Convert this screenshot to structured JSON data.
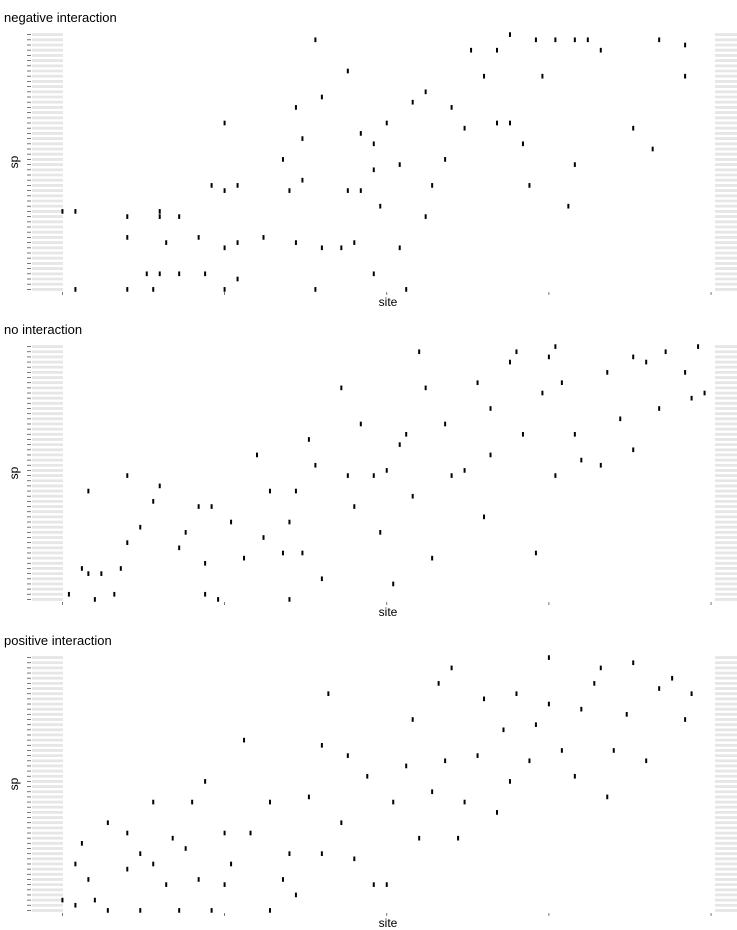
{
  "chart_data": [
    {
      "type": "scatter",
      "title": "negative interaction",
      "x_label": "site",
      "y_label": "sp",
      "color": "#000000",
      "xlim": [
        -5,
        104
      ],
      "ylim": [
        0.5,
        50.5
      ],
      "xticks": [
        0,
        25,
        50,
        75,
        100
      ],
      "yticks": [
        1,
        2,
        3,
        4,
        5,
        6,
        7,
        8,
        9,
        10,
        11,
        12,
        13,
        14,
        15,
        16,
        17,
        18,
        19,
        20,
        21,
        22,
        23,
        24,
        25,
        26,
        27,
        28,
        29,
        30,
        31,
        32,
        33,
        34,
        35,
        36,
        37,
        38,
        39,
        40,
        41,
        42,
        43,
        44,
        45,
        46,
        47,
        48,
        49,
        50
      ],
      "x": [
        0,
        2,
        10,
        15,
        15,
        18,
        10,
        16,
        21,
        25,
        27,
        31,
        36,
        40,
        43,
        45,
        52,
        13,
        15,
        18,
        22,
        27,
        48,
        2,
        10,
        14,
        25,
        39,
        53,
        23,
        25,
        27,
        37,
        44,
        46,
        49,
        56,
        34,
        35,
        37,
        36,
        40,
        44,
        46,
        48,
        52,
        57,
        59,
        62,
        63,
        67,
        65,
        67,
        69,
        72,
        78,
        73,
        76,
        79,
        81,
        83,
        92,
        96,
        96,
        88,
        91,
        79,
        71,
        39,
        25,
        54,
        56,
        60,
        74,
        69,
        50,
        48
      ],
      "values": [
        16,
        16,
        15,
        15,
        16,
        15,
        11,
        10,
        11,
        9,
        10,
        11,
        10,
        9,
        9,
        10,
        9,
        4,
        4,
        4,
        4,
        3,
        4,
        1,
        1,
        1,
        1,
        1,
        1,
        21,
        20,
        21,
        22,
        20,
        20,
        17,
        15,
        26,
        20,
        30,
        36,
        38,
        43,
        31,
        24,
        25,
        21,
        26,
        32,
        47,
        47,
        42,
        33,
        33,
        21,
        17,
        49,
        49,
        49,
        49,
        47,
        49,
        48,
        42,
        32,
        28,
        25,
        29,
        49,
        33,
        37,
        39,
        36,
        42,
        50,
        33,
        29
      ]
    },
    {
      "type": "scatter",
      "title": "no interaction",
      "x_label": "site",
      "y_label": "sp",
      "color": "#000000",
      "xlim": [
        -5,
        104
      ],
      "ylim": [
        0.5,
        50.5
      ],
      "xticks": [
        0,
        25,
        50,
        75,
        100
      ],
      "yticks": [
        1,
        2,
        3,
        4,
        5,
        6,
        7,
        8,
        9,
        10,
        11,
        12,
        13,
        14,
        15,
        16,
        17,
        18,
        19,
        20,
        21,
        22,
        23,
        24,
        25,
        26,
        27,
        28,
        29,
        30,
        31,
        32,
        33,
        34,
        35,
        36,
        37,
        38,
        39,
        40,
        41,
        42,
        43,
        44,
        45,
        46,
        47,
        48,
        49,
        50
      ],
      "x": [
        1,
        3,
        4,
        5,
        6,
        8,
        9,
        10,
        12,
        14,
        4,
        10,
        15,
        18,
        19,
        21,
        22,
        23,
        22,
        24,
        26,
        28,
        30,
        31,
        32,
        34,
        35,
        36,
        37,
        35,
        38,
        39,
        40,
        43,
        44,
        45,
        46,
        48,
        49,
        50,
        51,
        52,
        53,
        54,
        55,
        56,
        57,
        59,
        60,
        62,
        64,
        66,
        65,
        66,
        69,
        70,
        71,
        73,
        74,
        75,
        76,
        77,
        79,
        76,
        80,
        83,
        84,
        86,
        88,
        88,
        90,
        92,
        93,
        96,
        97,
        98,
        99
      ],
      "values": [
        2,
        7,
        6,
        1,
        6,
        2,
        7,
        12,
        15,
        20,
        22,
        25,
        23,
        11,
        14,
        19,
        8,
        19,
        2,
        1,
        16,
        9,
        29,
        13,
        22,
        10,
        16,
        22,
        10,
        1,
        32,
        27,
        5,
        42,
        25,
        19,
        35,
        25,
        14,
        26,
        4,
        31,
        33,
        21,
        49,
        42,
        9,
        35,
        25,
        26,
        43,
        29,
        17,
        38,
        47,
        49,
        33,
        10,
        41,
        48,
        50,
        43,
        33,
        25,
        28,
        27,
        45,
        36,
        48,
        30,
        47,
        38,
        49,
        45,
        40,
        50,
        41
      ]
    },
    {
      "type": "scatter",
      "title": "positive interaction",
      "x_label": "site",
      "y_label": "sp",
      "color": "#000000",
      "xlim": [
        -5,
        104
      ],
      "ylim": [
        0.5,
        50.5
      ],
      "xticks": [
        0,
        25,
        50,
        75,
        100
      ],
      "yticks": [
        1,
        2,
        3,
        4,
        5,
        6,
        7,
        8,
        9,
        10,
        11,
        12,
        13,
        14,
        15,
        16,
        17,
        18,
        19,
        20,
        21,
        22,
        23,
        24,
        25,
        26,
        27,
        28,
        29,
        30,
        31,
        32,
        33,
        34,
        35,
        36,
        37,
        38,
        39,
        40,
        41,
        42,
        43,
        44,
        45,
        46,
        47,
        48,
        49,
        50
      ],
      "x": [
        0,
        2,
        2,
        3,
        4,
        5,
        7,
        7,
        10,
        10,
        12,
        12,
        14,
        14,
        16,
        17,
        18,
        19,
        20,
        21,
        22,
        23,
        25,
        25,
        26,
        28,
        29,
        32,
        32,
        34,
        35,
        36,
        38,
        40,
        40,
        41,
        43,
        44,
        45,
        47,
        48,
        50,
        51,
        53,
        54,
        55,
        57,
        58,
        59,
        60,
        61,
        62,
        64,
        65,
        67,
        68,
        69,
        70,
        72,
        73,
        75,
        75,
        77,
        79,
        80,
        82,
        83,
        84,
        85,
        87,
        88,
        90,
        92,
        94,
        96,
        97
      ],
      "values": [
        3,
        2,
        10,
        14,
        7,
        3,
        18,
        1,
        16,
        9,
        1,
        12,
        10,
        22,
        6,
        15,
        1,
        13,
        22,
        7,
        26,
        1,
        6,
        16,
        10,
        34,
        16,
        1,
        22,
        7,
        12,
        4,
        23,
        33,
        12,
        43,
        18,
        31,
        11,
        27,
        6,
        6,
        22,
        29,
        38,
        15,
        24,
        45,
        30,
        48,
        15,
        22,
        31,
        42,
        20,
        36,
        26,
        43,
        30,
        37,
        50,
        41,
        32,
        27,
        40,
        45,
        48,
        23,
        32,
        39,
        49,
        30,
        44,
        46,
        38,
        43
      ]
    }
  ]
}
